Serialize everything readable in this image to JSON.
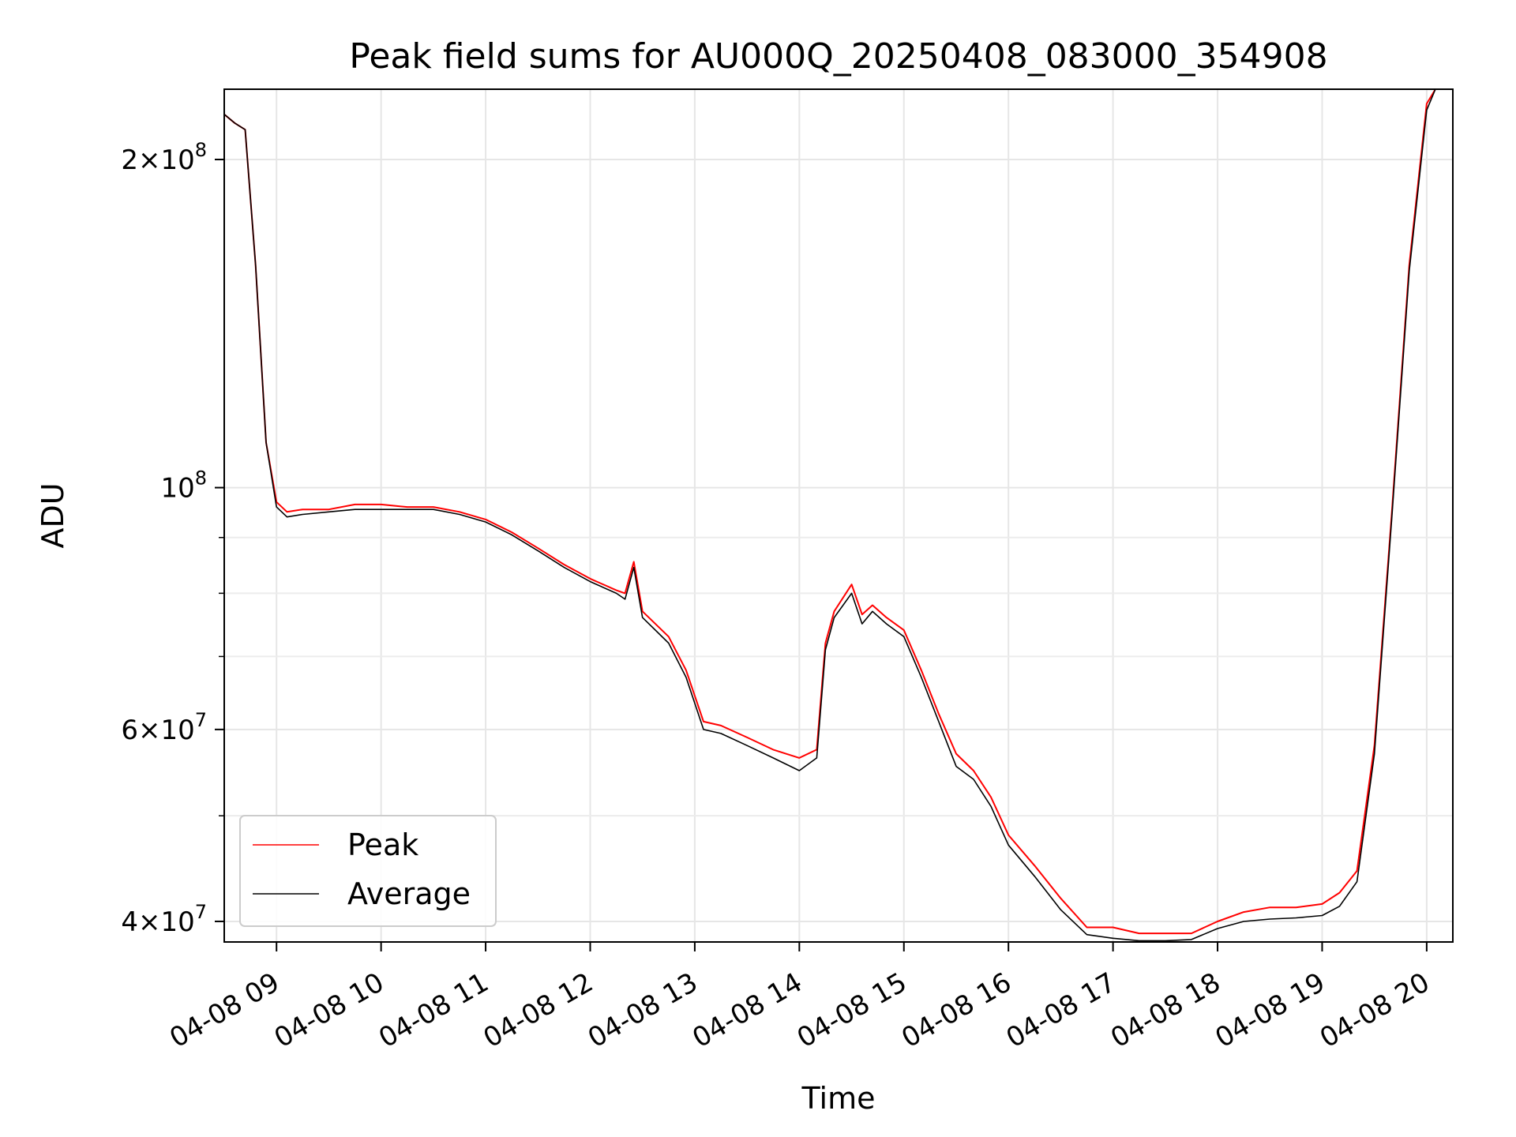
{
  "chart_data": {
    "type": "line",
    "title": "Peak field sums for AU000Q_20250408_083000_354908",
    "xlabel": "Time",
    "ylabel": "ADU",
    "yscale": "log",
    "ylim": [
      38300000,
      232000000
    ],
    "xlim": [
      "2025-04-08 08:30",
      "2025-04-08 20:15"
    ],
    "grid": true,
    "legend_position": "lower-left",
    "x_ticks": [
      {
        "label": "04-08 09",
        "value": "2025-04-08 09:00"
      },
      {
        "label": "04-08 10",
        "value": "2025-04-08 10:00"
      },
      {
        "label": "04-08 11",
        "value": "2025-04-08 11:00"
      },
      {
        "label": "04-08 12",
        "value": "2025-04-08 12:00"
      },
      {
        "label": "04-08 13",
        "value": "2025-04-08 13:00"
      },
      {
        "label": "04-08 14",
        "value": "2025-04-08 14:00"
      },
      {
        "label": "04-08 15",
        "value": "2025-04-08 15:00"
      },
      {
        "label": "04-08 16",
        "value": "2025-04-08 16:00"
      },
      {
        "label": "04-08 17",
        "value": "2025-04-08 17:00"
      },
      {
        "label": "04-08 18",
        "value": "2025-04-08 18:00"
      },
      {
        "label": "04-08 19",
        "value": "2025-04-08 19:00"
      },
      {
        "label": "04-08 20",
        "value": "2025-04-08 20:00"
      }
    ],
    "y_ticks": [
      {
        "value": 200000000,
        "mant": "2",
        "exp": "8"
      },
      {
        "value": 100000000,
        "mant": "",
        "exp": "8"
      },
      {
        "value": 60000000,
        "mant": "6",
        "exp": "7"
      },
      {
        "value": 40000000,
        "mant": "4",
        "exp": "7"
      }
    ],
    "y_minor_ticks": [
      50000000,
      70000000,
      80000000,
      90000000
    ],
    "series": [
      {
        "name": "Peak",
        "color": "#ff0000",
        "x": [
          "2025-04-08 08:30",
          "2025-04-08 08:36",
          "2025-04-08 08:42",
          "2025-04-08 08:48",
          "2025-04-08 08:54",
          "2025-04-08 09:00",
          "2025-04-08 09:06",
          "2025-04-08 09:15",
          "2025-04-08 09:30",
          "2025-04-08 09:45",
          "2025-04-08 10:00",
          "2025-04-08 10:15",
          "2025-04-08 10:30",
          "2025-04-08 10:45",
          "2025-04-08 11:00",
          "2025-04-08 11:15",
          "2025-04-08 11:30",
          "2025-04-08 11:45",
          "2025-04-08 12:00",
          "2025-04-08 12:15",
          "2025-04-08 12:20",
          "2025-04-08 12:25",
          "2025-04-08 12:30",
          "2025-04-08 12:45",
          "2025-04-08 12:55",
          "2025-04-08 13:05",
          "2025-04-08 13:15",
          "2025-04-08 13:30",
          "2025-04-08 13:45",
          "2025-04-08 14:00",
          "2025-04-08 14:10",
          "2025-04-08 14:15",
          "2025-04-08 14:20",
          "2025-04-08 14:30",
          "2025-04-08 14:36",
          "2025-04-08 14:42",
          "2025-04-08 14:50",
          "2025-04-08 15:00",
          "2025-04-08 15:10",
          "2025-04-08 15:20",
          "2025-04-08 15:30",
          "2025-04-08 15:40",
          "2025-04-08 15:50",
          "2025-04-08 16:00",
          "2025-04-08 16:15",
          "2025-04-08 16:30",
          "2025-04-08 16:45",
          "2025-04-08 17:00",
          "2025-04-08 17:15",
          "2025-04-08 17:30",
          "2025-04-08 17:45",
          "2025-04-08 18:00",
          "2025-04-08 18:15",
          "2025-04-08 18:30",
          "2025-04-08 18:45",
          "2025-04-08 19:00",
          "2025-04-08 19:10",
          "2025-04-08 19:20",
          "2025-04-08 19:30",
          "2025-04-08 19:40",
          "2025-04-08 19:50",
          "2025-04-08 20:00",
          "2025-04-08 20:05"
        ],
        "y": [
          220000000,
          216000000,
          213000000,
          160000000,
          110000000,
          97000000,
          95000000,
          95500000,
          95500000,
          96500000,
          96500000,
          96000000,
          96000000,
          95000000,
          93500000,
          91000000,
          88000000,
          85000000,
          82500000,
          80500000,
          80000000,
          85500000,
          77000000,
          73000000,
          68000000,
          61000000,
          60500000,
          59000000,
          57500000,
          56500000,
          57500000,
          72000000,
          77000000,
          81500000,
          76500000,
          78000000,
          76000000,
          74000000,
          68000000,
          62000000,
          57000000,
          55000000,
          52000000,
          48000000,
          45000000,
          42000000,
          39500000,
          39500000,
          39000000,
          39000000,
          39000000,
          40000000,
          40800000,
          41200000,
          41200000,
          41500000,
          42500000,
          44500000,
          58000000,
          95000000,
          160000000,
          225000000,
          232000000
        ]
      },
      {
        "name": "Average",
        "color": "#000000",
        "x": [
          "2025-04-08 08:30",
          "2025-04-08 08:36",
          "2025-04-08 08:42",
          "2025-04-08 08:48",
          "2025-04-08 08:54",
          "2025-04-08 09:00",
          "2025-04-08 09:06",
          "2025-04-08 09:15",
          "2025-04-08 09:30",
          "2025-04-08 09:45",
          "2025-04-08 10:00",
          "2025-04-08 10:15",
          "2025-04-08 10:30",
          "2025-04-08 10:45",
          "2025-04-08 11:00",
          "2025-04-08 11:15",
          "2025-04-08 11:30",
          "2025-04-08 11:45",
          "2025-04-08 12:00",
          "2025-04-08 12:15",
          "2025-04-08 12:20",
          "2025-04-08 12:25",
          "2025-04-08 12:30",
          "2025-04-08 12:45",
          "2025-04-08 12:55",
          "2025-04-08 13:05",
          "2025-04-08 13:15",
          "2025-04-08 13:30",
          "2025-04-08 13:45",
          "2025-04-08 14:00",
          "2025-04-08 14:10",
          "2025-04-08 14:15",
          "2025-04-08 14:20",
          "2025-04-08 14:30",
          "2025-04-08 14:36",
          "2025-04-08 14:42",
          "2025-04-08 14:50",
          "2025-04-08 15:00",
          "2025-04-08 15:10",
          "2025-04-08 15:20",
          "2025-04-08 15:30",
          "2025-04-08 15:40",
          "2025-04-08 15:50",
          "2025-04-08 16:00",
          "2025-04-08 16:15",
          "2025-04-08 16:30",
          "2025-04-08 16:45",
          "2025-04-08 17:00",
          "2025-04-08 17:15",
          "2025-04-08 17:30",
          "2025-04-08 17:45",
          "2025-04-08 18:00",
          "2025-04-08 18:15",
          "2025-04-08 18:30",
          "2025-04-08 18:45",
          "2025-04-08 19:00",
          "2025-04-08 19:10",
          "2025-04-08 19:20",
          "2025-04-08 19:30",
          "2025-04-08 19:40",
          "2025-04-08 19:50",
          "2025-04-08 20:00",
          "2025-04-08 20:05"
        ],
        "y": [
          220000000,
          216000000,
          213000000,
          160000000,
          110000000,
          96000000,
          94000000,
          94500000,
          95000000,
          95500000,
          95500000,
          95500000,
          95500000,
          94500000,
          93000000,
          90500000,
          87500000,
          84500000,
          82000000,
          80000000,
          79000000,
          84500000,
          76000000,
          72000000,
          67000000,
          60000000,
          59500000,
          58000000,
          56500000,
          55000000,
          56500000,
          71000000,
          76000000,
          80000000,
          75000000,
          77000000,
          75000000,
          73000000,
          67000000,
          61000000,
          55500000,
          54000000,
          51000000,
          47000000,
          44000000,
          41000000,
          38900000,
          38600000,
          38400000,
          38400000,
          38500000,
          39400000,
          40000000,
          40200000,
          40300000,
          40500000,
          41300000,
          43500000,
          57000000,
          94000000,
          158000000,
          222000000,
          232000000
        ]
      }
    ]
  }
}
